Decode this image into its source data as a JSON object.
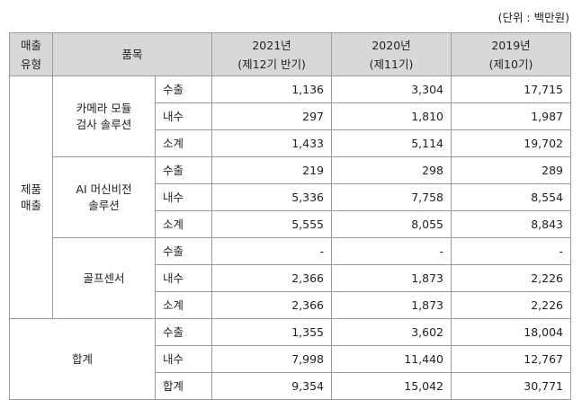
{
  "unit_note": "(단위 : 백만원)",
  "header": {
    "type_line1": "매출",
    "type_line2": "유형",
    "item": "품목",
    "years": [
      {
        "year": "2021년",
        "period": "(제12기 반기)"
      },
      {
        "year": "2020년",
        "period": "(제11기)"
      },
      {
        "year": "2019년",
        "period": "(제10기)"
      }
    ]
  },
  "category": {
    "line1": "제품",
    "line2": "매출"
  },
  "groups": [
    {
      "name_line1": "카메라 모듈",
      "name_line2": "검사 솔루션",
      "rows": [
        {
          "label": "수출",
          "values": [
            "1,136",
            "3,304",
            "17,715"
          ]
        },
        {
          "label": "내수",
          "values": [
            "297",
            "1,810",
            "1,987"
          ]
        },
        {
          "label": "소계",
          "values": [
            "1,433",
            "5,114",
            "19,702"
          ]
        }
      ]
    },
    {
      "name_line1": "AI 머신비전",
      "name_line2": "솔루션",
      "rows": [
        {
          "label": "수출",
          "values": [
            "219",
            "298",
            "289"
          ]
        },
        {
          "label": "내수",
          "values": [
            "5,336",
            "7,758",
            "8,554"
          ]
        },
        {
          "label": "소계",
          "values": [
            "5,555",
            "8,055",
            "8,843"
          ]
        }
      ]
    },
    {
      "name_line1": "골프센서",
      "name_line2": "",
      "rows": [
        {
          "label": "수출",
          "values": [
            "-",
            "-",
            "-"
          ]
        },
        {
          "label": "내수",
          "values": [
            "2,366",
            "1,873",
            "2,226"
          ]
        },
        {
          "label": "소계",
          "values": [
            "2,366",
            "1,873",
            "2,226"
          ]
        }
      ]
    }
  ],
  "total": {
    "label": "합계",
    "rows": [
      {
        "label": "수출",
        "values": [
          "1,355",
          "3,602",
          "18,004"
        ]
      },
      {
        "label": "내수",
        "values": [
          "7,998",
          "11,440",
          "12,767"
        ]
      },
      {
        "label": "합계",
        "values": [
          "9,354",
          "15,042",
          "30,771"
        ]
      }
    ]
  }
}
